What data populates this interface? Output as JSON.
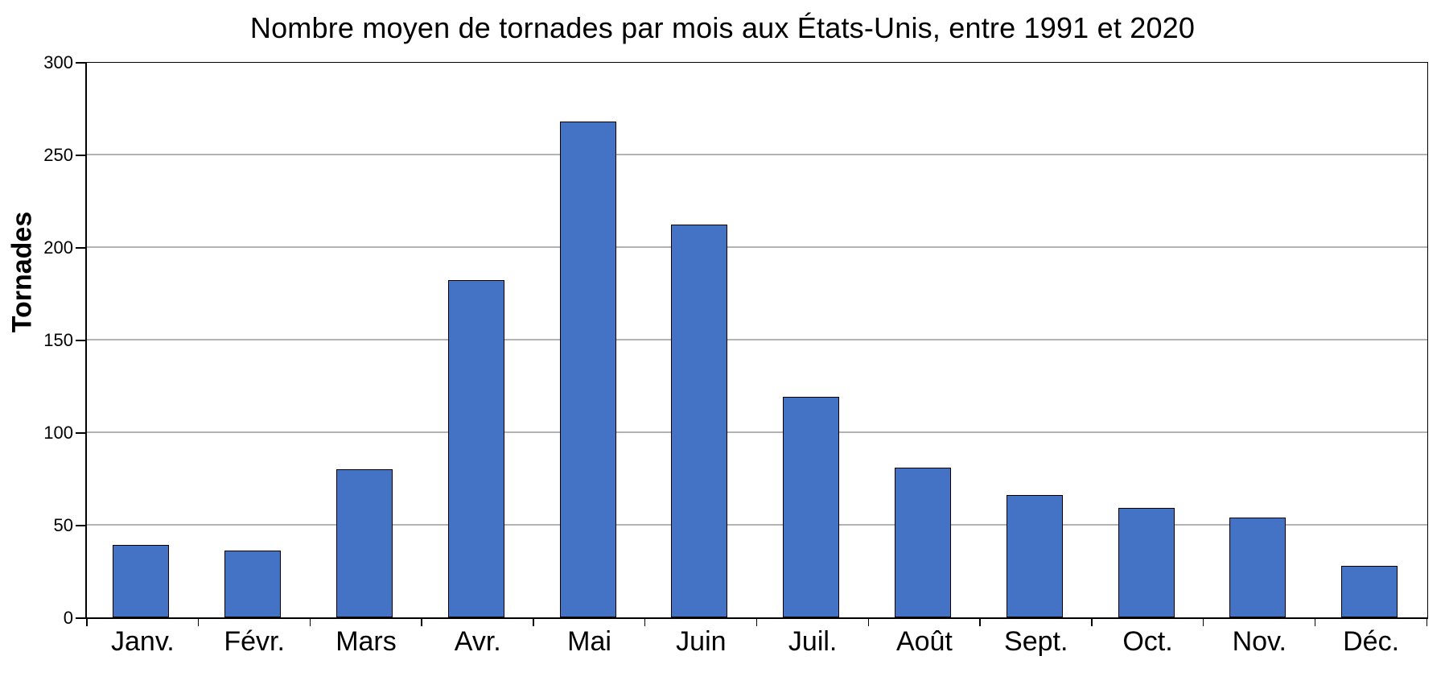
{
  "chart_data": {
    "type": "bar",
    "title": "Nombre moyen de tornades par mois aux États-Unis, entre 1991 et 2020",
    "xlabel": "",
    "ylabel": "Tornades",
    "categories": [
      "Janv.",
      "Févr.",
      "Mars",
      "Avr.",
      "Mai",
      "Juin",
      "Juil.",
      "Août",
      "Sept.",
      "Oct.",
      "Nov.",
      "Déc."
    ],
    "values": [
      39,
      36,
      80,
      182,
      268,
      212,
      119,
      81,
      66,
      59,
      54,
      28
    ],
    "ylim": [
      0,
      300
    ],
    "yticks": [
      0,
      50,
      100,
      150,
      200,
      250,
      300
    ],
    "grid": "horizontal",
    "legend_position": "none",
    "colors": {
      "bar_fill": "#4472C4",
      "bar_border": "#000000",
      "gridline": "#B3B3B3",
      "axis": "#000000",
      "text": "#000000",
      "background": "#FFFFFF"
    }
  }
}
